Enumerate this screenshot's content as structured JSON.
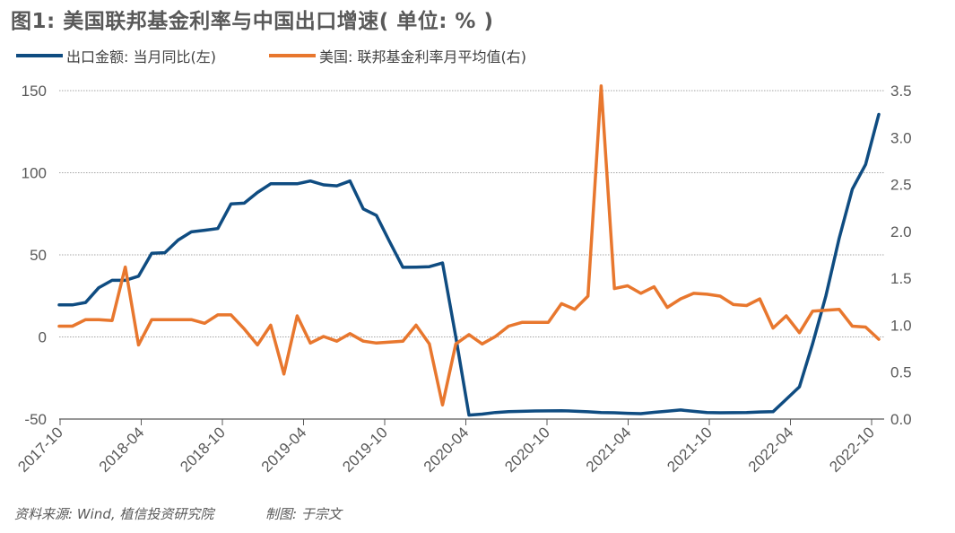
{
  "title": "图1: 美国联邦基金利率与中国出口增速( 单位: % )",
  "source": "资料来源: Wind, 植信投资研究院",
  "credit": "制图: 于宗文",
  "colors": {
    "blue": "#0f4c81",
    "orange": "#e8772e",
    "grid": "#a6a6a6",
    "axis": "#595959"
  },
  "chart_data": {
    "type": "line",
    "title": "图1: 美国联邦基金利率与中国出口增速( 单位: % )",
    "legend_position": "top-left",
    "grid": true,
    "x_tick_labels": [
      "2017-10",
      "2018-04",
      "2018-10",
      "2019-04",
      "2019-10",
      "2020-04",
      "2020-10",
      "2021-04",
      "2021-10",
      "2022-04",
      "2022-10"
    ],
    "y_left": {
      "ticks": [
        "150",
        "100",
        "50",
        "0",
        "-50"
      ],
      "range": [
        -50,
        150
      ]
    },
    "y_right": {
      "ticks": [
        "3.5",
        "3.0",
        "2.5",
        "2.0",
        "1.5",
        "1.0",
        "0.5",
        "0.0"
      ],
      "range": [
        0,
        3.5
      ]
    },
    "series": [
      {
        "name": "出口金额: 当月同比(左)",
        "axis": "left",
        "color": "#0f4c81",
        "values": [
          19.5,
          19.5,
          21,
          30,
          34.5,
          34.5,
          37,
          51,
          51.3,
          59,
          64,
          65,
          66,
          81,
          81.5,
          88,
          93.3,
          93.3,
          93.3,
          95,
          92.6,
          92,
          95,
          78,
          74,
          58,
          42.4,
          42.5,
          42.8,
          45,
          0,
          -47.6,
          -47,
          -46,
          -45.5,
          -45.3,
          -45.1,
          -45,
          -44.9,
          -45.2,
          -45.6,
          -46,
          -46.2,
          -46.5,
          -46.7,
          -45.9,
          -45.2,
          -44.5,
          -45.3,
          -46,
          -46.2,
          -46.1,
          -46,
          -45.7,
          -45.5,
          -38,
          -30.4,
          -4,
          25,
          60,
          90,
          105,
          135.5
        ]
      },
      {
        "name": "美国: 联邦基金利率月平均值(右)",
        "axis": "right",
        "color": "#e8772e",
        "values": [
          0.99,
          0.99,
          1.06,
          1.06,
          1.05,
          1.62,
          0.79,
          1.06,
          1.06,
          1.06,
          1.06,
          1.02,
          1.11,
          1.11,
          0.96,
          0.79,
          1.0,
          0.48,
          1.1,
          0.81,
          0.88,
          0.83,
          0.91,
          0.83,
          0.81,
          0.82,
          0.83,
          1.0,
          0.8,
          0.15,
          0.8,
          0.9,
          0.8,
          0.88,
          0.99,
          1.03,
          1.03,
          1.03,
          1.23,
          1.17,
          1.31,
          3.55,
          1.39,
          1.42,
          1.34,
          1.41,
          1.19,
          1.28,
          1.34,
          1.33,
          1.31,
          1.22,
          1.21,
          1.28,
          0.97,
          1.1,
          0.92,
          1.15,
          1.16,
          1.17,
          0.99,
          0.98,
          0.85
        ]
      }
    ]
  }
}
